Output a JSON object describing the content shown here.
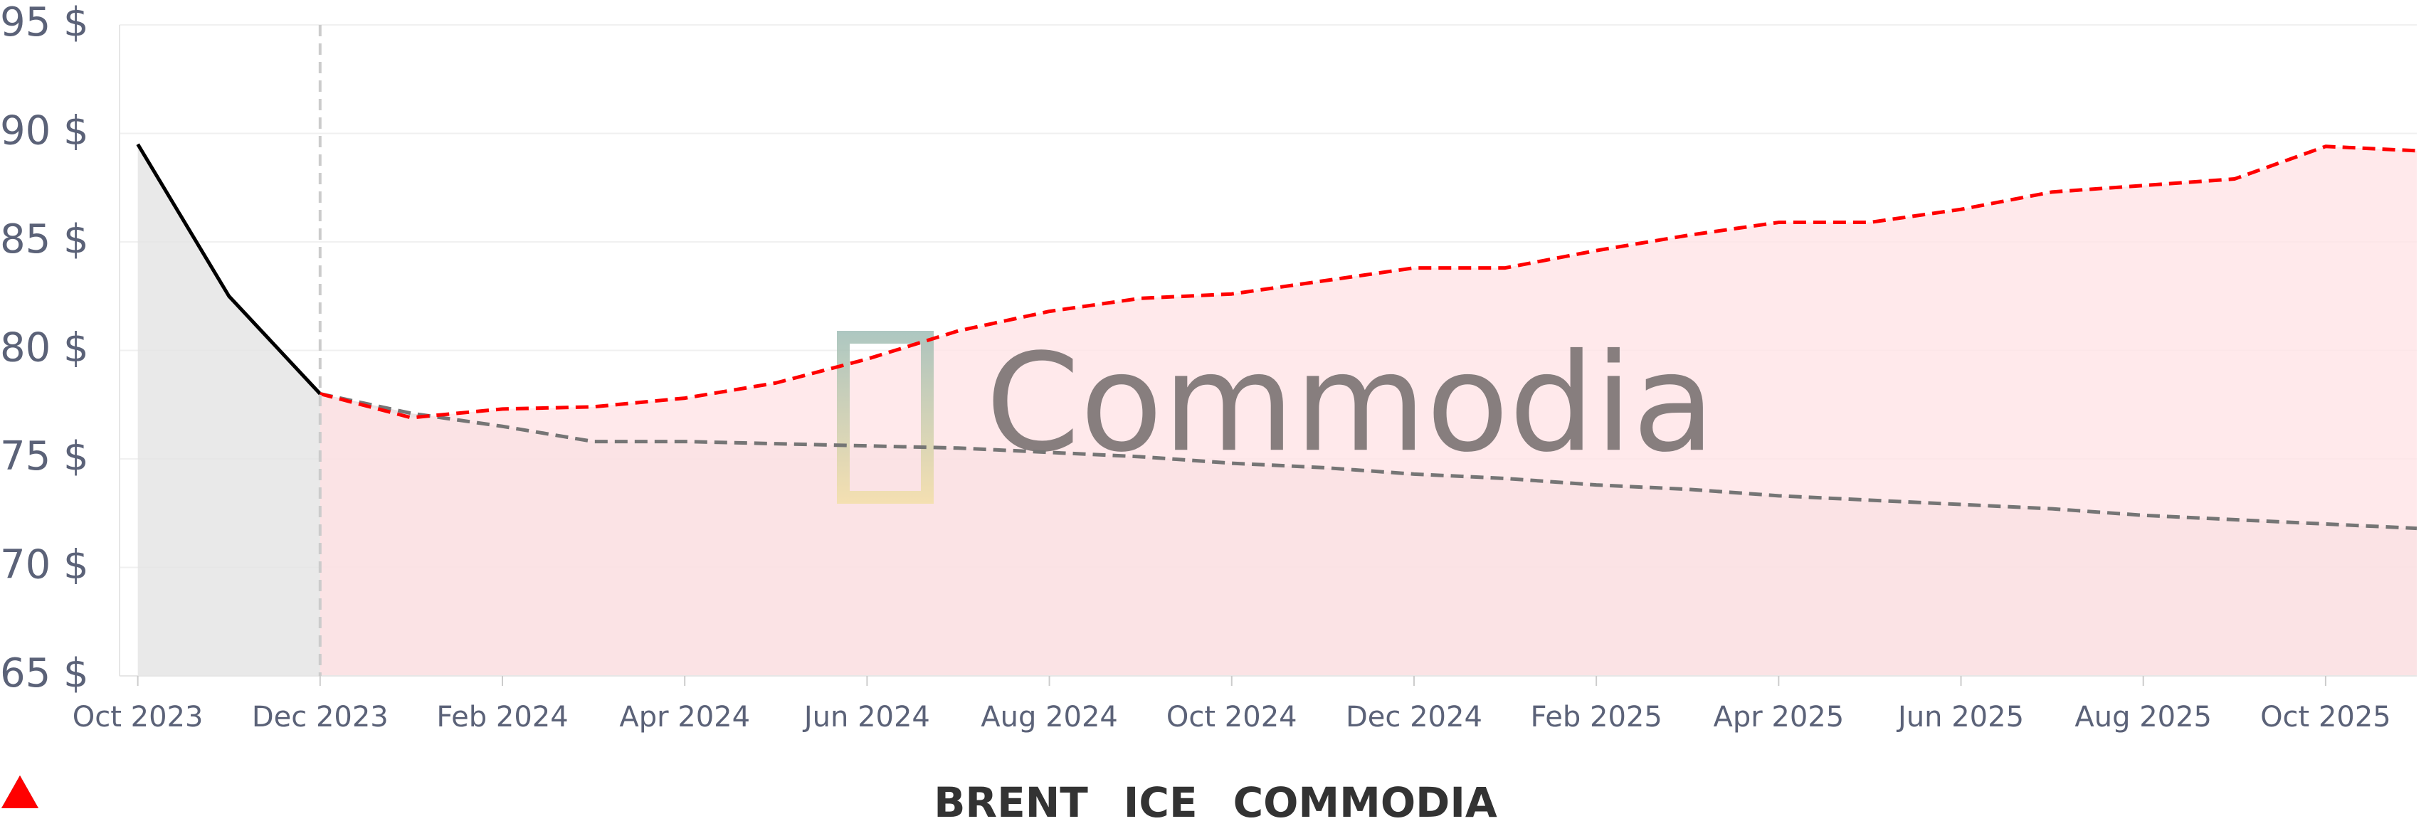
{
  "chart_data": {
    "type": "line",
    "watermark": "Commodia",
    "categories": [
      "Oct 2023",
      null,
      "Dec 2023",
      null,
      "Feb 2024",
      null,
      "Apr 2024",
      null,
      "Jun 2024",
      null,
      "Aug 2024",
      null,
      "Oct 2024",
      null,
      "Dec 2024",
      null,
      "Feb 2025",
      null,
      "Apr 2025",
      null,
      "Jun 2025",
      null,
      "Aug 2025",
      null,
      "Oct 2025",
      null
    ],
    "series": [
      {
        "name": "BRENT",
        "color": "#000000",
        "area_color": "#e4e4e4",
        "dashed": false,
        "values": [
          89.5,
          82.5,
          78,
          null,
          null,
          null,
          null,
          null,
          null,
          null,
          null,
          null,
          null,
          null,
          null,
          null,
          null,
          null,
          null,
          null,
          null,
          null,
          null,
          null,
          null,
          null
        ]
      },
      {
        "name": "ICE",
        "color": "#757575",
        "area_color": "#d9c9ca",
        "dashed": true,
        "values": [
          null,
          null,
          78,
          77.1,
          76.5,
          75.8,
          75.8,
          75.7,
          75.6,
          75.5,
          75.3,
          75.1,
          74.8,
          74.6,
          74.3,
          74.1,
          73.8,
          73.6,
          73.3,
          73.1,
          72.9,
          72.7,
          72.4,
          72.2,
          72.0,
          71.8
        ]
      },
      {
        "name": "COMMODIA",
        "color": "#ff0000",
        "area_color": "#ffe4e6",
        "dashed": true,
        "values": [
          null,
          null,
          78,
          76.9,
          77.3,
          77.4,
          77.8,
          78.5,
          79.6,
          80.9,
          81.8,
          82.4,
          82.6,
          83.2,
          83.8,
          83.8,
          84.6,
          85.3,
          85.9,
          85.9,
          86.5,
          87.3,
          87.6,
          87.9,
          89.4,
          89.2
        ]
      }
    ],
    "ylim": [
      65,
      95
    ],
    "yticks": [
      {
        "value": 65,
        "label": "65 $"
      },
      {
        "value": 70,
        "label": "70 $"
      },
      {
        "value": 75,
        "label": "75 $"
      },
      {
        "value": 80,
        "label": "80 $"
      },
      {
        "value": 85,
        "label": "85 $"
      },
      {
        "value": 90,
        "label": "90 $"
      },
      {
        "value": 95,
        "label": "95 $"
      }
    ],
    "grid": true,
    "legend": "bottom"
  }
}
